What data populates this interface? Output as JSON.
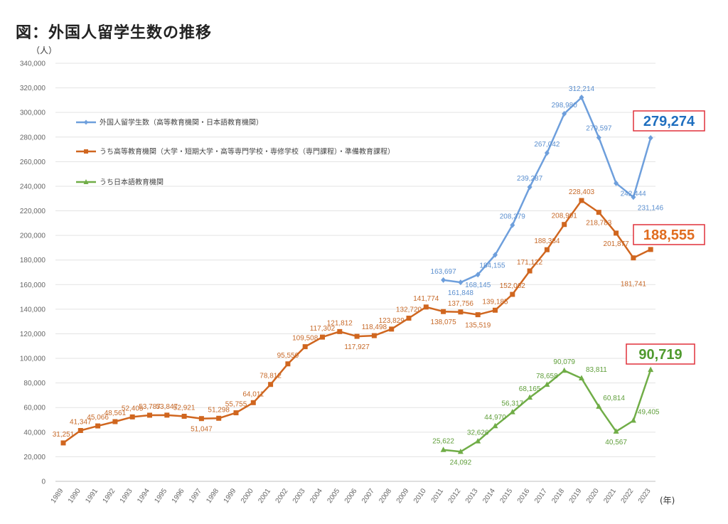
{
  "title": "図：外国人留学生数の推移",
  "y_unit": "（人）",
  "x_unit": "(年)",
  "chart_data": {
    "type": "line",
    "ylim": [
      0,
      340000
    ],
    "y_ticks": [
      0,
      20000,
      40000,
      60000,
      80000,
      100000,
      120000,
      140000,
      160000,
      180000,
      200000,
      220000,
      240000,
      260000,
      280000,
      300000,
      320000,
      340000
    ],
    "y_tick_labels": [
      "0",
      "20,000",
      "40,000",
      "60,000",
      "80,000",
      "100,000",
      "120,000",
      "140,000",
      "160,000",
      "180,000",
      "200,000",
      "220,000",
      "240,000",
      "260,000",
      "280,000",
      "300,000",
      "320,000",
      "340,000"
    ],
    "categories": [
      "1989",
      "1990",
      "1991",
      "1992",
      "1993",
      "1994",
      "1995",
      "1996",
      "1997",
      "1998",
      "1999",
      "2000",
      "2001",
      "2002",
      "2003",
      "2004",
      "2005",
      "2006",
      "2007",
      "2008",
      "2009",
      "2010",
      "2011",
      "2012",
      "2013",
      "2014",
      "2015",
      "2016",
      "2017",
      "2018",
      "2019",
      "2020",
      "2021",
      "2022",
      "2023"
    ],
    "grid": "horizontal",
    "legend_position": "top-left",
    "series": [
      {
        "name": "外国人留学生数（高等教育機関・日本語教育機関）",
        "color": "#6e9fdc",
        "marker": "diamond",
        "values": [
          null,
          null,
          null,
          null,
          null,
          null,
          null,
          null,
          null,
          null,
          null,
          null,
          null,
          null,
          null,
          null,
          null,
          null,
          null,
          null,
          null,
          null,
          163697,
          161848,
          168145,
          184155,
          208379,
          239287,
          267042,
          298980,
          312214,
          279597,
          242444,
          231146,
          279274
        ],
        "labels": [
          null,
          null,
          null,
          null,
          null,
          null,
          null,
          null,
          null,
          null,
          null,
          null,
          null,
          null,
          null,
          null,
          null,
          null,
          null,
          null,
          null,
          null,
          "163,697",
          "161,848",
          "168,145",
          "184,155",
          "208,379",
          "239,287",
          "267,042",
          "298,980",
          "312,214",
          "279,597",
          "242,444",
          "231,146",
          null
        ],
        "highlight": "279,274",
        "highlight_color": "#1f6fbf"
      },
      {
        "name": "うち高等教育機関（大学・短期大学・高等専門学校・専修学校（専門課程）・準備教育課程）",
        "color": "#d0661f",
        "marker": "square",
        "values": [
          31251,
          41347,
          45066,
          48561,
          52405,
          53787,
          53847,
          52921,
          51047,
          51298,
          55755,
          64011,
          78812,
          95550,
          109508,
          117302,
          121812,
          117927,
          118498,
          123829,
          132720,
          141774,
          138075,
          137756,
          135519,
          139185,
          152062,
          171122,
          188384,
          208901,
          228403,
          218783,
          201877,
          181741,
          188555
        ],
        "labels": [
          "31,251",
          "41,347",
          "45,066",
          "48,561",
          "52,405",
          "53,787",
          "53,847",
          "52,921",
          "51,047",
          "51,298",
          "55,755",
          "64,011",
          "78,812",
          "95,550",
          "109,508",
          "117,302",
          "121,812",
          "117,927",
          "118,498",
          "123,829",
          "132,720",
          "141,774",
          "138,075",
          "137,756",
          "135,519",
          "139,185",
          "152,062",
          "171,122",
          "188,384",
          "208,901",
          "228,403",
          "218,783",
          "201,877",
          "181,741",
          null
        ],
        "highlight": "188,555",
        "highlight_color": "#e06c1f"
      },
      {
        "name": "うち日本語教育機関",
        "color": "#70ad47",
        "marker": "triangle",
        "values": [
          null,
          null,
          null,
          null,
          null,
          null,
          null,
          null,
          null,
          null,
          null,
          null,
          null,
          null,
          null,
          null,
          null,
          null,
          null,
          null,
          null,
          null,
          25622,
          24092,
          32626,
          44970,
          56317,
          68165,
          78658,
          90079,
          83811,
          60814,
          40567,
          49405,
          90719
        ],
        "labels": [
          null,
          null,
          null,
          null,
          null,
          null,
          null,
          null,
          null,
          null,
          null,
          null,
          null,
          null,
          null,
          null,
          null,
          null,
          null,
          null,
          null,
          null,
          "25,622",
          "24,092",
          "32,626",
          "44,970",
          "56,317",
          "68,165",
          "78,658",
          "90,079",
          "83,811",
          "60,814",
          "40,567",
          "49,405",
          null
        ],
        "highlight": "90,719",
        "highlight_color": "#4f9a2e"
      }
    ]
  }
}
